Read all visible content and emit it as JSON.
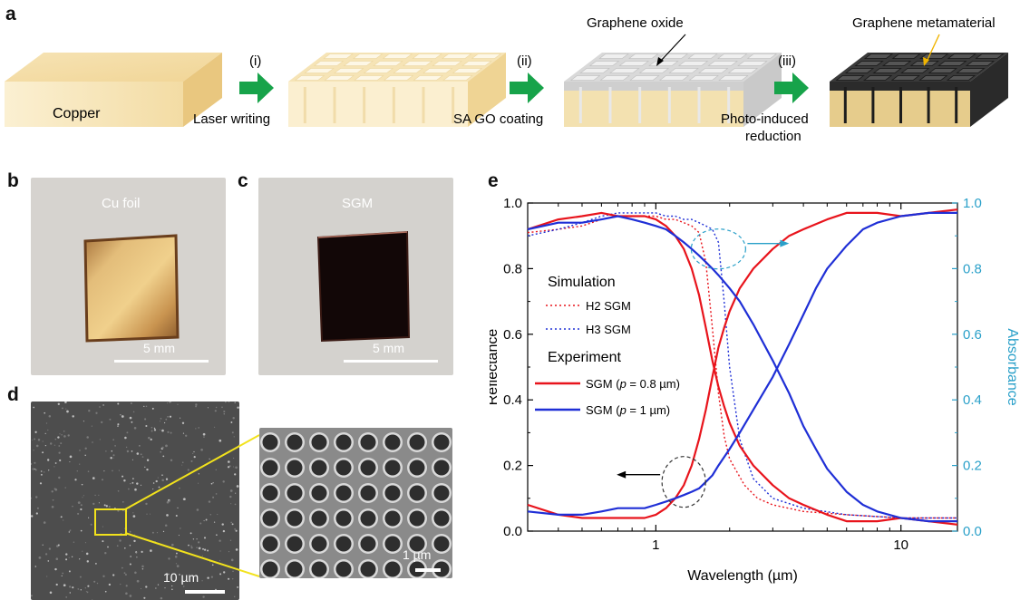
{
  "panels": {
    "a": "a",
    "b": "b",
    "c": "c",
    "d": "d",
    "e": "e"
  },
  "panel_a": {
    "block_label": "Copper",
    "steps": [
      {
        "num": "(i)",
        "label": "Laser writing"
      },
      {
        "num": "(ii)",
        "label": "SA GO coating"
      },
      {
        "num": "(iii)",
        "label_line1": "Photo-induced",
        "label_line2": "reduction"
      }
    ],
    "annotation_go": "Graphene oxide",
    "annotation_meta": "Graphene metamaterial",
    "colors": {
      "copper": "#f4dca6",
      "arrow": "#17a34a",
      "go": "#dcdcdc",
      "meta": "#2e2e2e"
    }
  },
  "panel_b": {
    "label": "Cu foil",
    "scale": "5 mm"
  },
  "panel_c": {
    "label": "SGM",
    "scale": "5 mm"
  },
  "panel_d": {
    "scale_left": "10 µm",
    "scale_right": "1 µm"
  },
  "chart_data": {
    "type": "line",
    "xlabel": "Wavelength (µm)",
    "ylabel_left": "Reflectance",
    "ylabel_right": "Absorbance",
    "xscale": "log",
    "xlim": [
      0.3,
      17
    ],
    "ylim": [
      0,
      1
    ],
    "x_ticks": [
      "1",
      "10"
    ],
    "y_ticks": [
      "0.0",
      "0.2",
      "0.4",
      "0.6",
      "0.8",
      "1.0"
    ],
    "legend": {
      "simulation_title": "Simulation",
      "experiment_title": "Experiment",
      "entries": [
        {
          "label": "H2 SGM",
          "color": "#e8141c",
          "style": "dotted"
        },
        {
          "label": "H3 SGM",
          "color": "#1f2fd6",
          "style": "dotted"
        },
        {
          "label_pre": "SGM (",
          "label_p": "p",
          "label_post": " = 0.8 µm)",
          "color": "#e8141c",
          "style": "solid"
        },
        {
          "label_pre": "SGM (",
          "label_p": "p",
          "label_post": " = 1 µm)",
          "color": "#1f2fd6",
          "style": "solid"
        }
      ]
    },
    "series": [
      {
        "name": "H2 SGM",
        "kind": "simulation",
        "color": "#e8141c",
        "absorbance": [
          [
            0.3,
            0.91
          ],
          [
            0.4,
            0.92
          ],
          [
            0.5,
            0.93
          ],
          [
            0.6,
            0.95
          ],
          [
            0.7,
            0.96
          ],
          [
            0.8,
            0.96
          ],
          [
            0.9,
            0.96
          ],
          [
            1.0,
            0.96
          ],
          [
            1.1,
            0.95
          ],
          [
            1.2,
            0.95
          ],
          [
            1.3,
            0.94
          ],
          [
            1.4,
            0.93
          ],
          [
            1.5,
            0.91
          ],
          [
            1.6,
            0.82
          ],
          [
            1.7,
            0.62
          ],
          [
            1.8,
            0.42
          ],
          [
            1.9,
            0.29
          ],
          [
            2.0,
            0.22
          ],
          [
            2.3,
            0.14
          ],
          [
            2.6,
            0.1
          ],
          [
            3,
            0.08
          ],
          [
            4,
            0.06
          ],
          [
            6,
            0.05
          ],
          [
            10,
            0.04
          ],
          [
            17,
            0.04
          ]
        ]
      },
      {
        "name": "H3 SGM",
        "kind": "simulation",
        "color": "#1f2fd6",
        "absorbance": [
          [
            0.3,
            0.9
          ],
          [
            0.4,
            0.92
          ],
          [
            0.5,
            0.94
          ],
          [
            0.6,
            0.96
          ],
          [
            0.7,
            0.97
          ],
          [
            0.8,
            0.97
          ],
          [
            0.9,
            0.97
          ],
          [
            1.0,
            0.97
          ],
          [
            1.1,
            0.96
          ],
          [
            1.2,
            0.96
          ],
          [
            1.3,
            0.95
          ],
          [
            1.4,
            0.95
          ],
          [
            1.5,
            0.94
          ],
          [
            1.6,
            0.93
          ],
          [
            1.7,
            0.92
          ],
          [
            1.8,
            0.88
          ],
          [
            1.9,
            0.7
          ],
          [
            2.0,
            0.5
          ],
          [
            2.2,
            0.28
          ],
          [
            2.5,
            0.16
          ],
          [
            3,
            0.1
          ],
          [
            4,
            0.07
          ],
          [
            6,
            0.05
          ],
          [
            10,
            0.04
          ],
          [
            17,
            0.04
          ]
        ]
      },
      {
        "name": "SGM (p = 0.8 µm) reflectance",
        "kind": "experiment",
        "color": "#e8141c",
        "reflectance": [
          [
            0.3,
            0.08
          ],
          [
            0.4,
            0.05
          ],
          [
            0.5,
            0.04
          ],
          [
            0.6,
            0.04
          ],
          [
            0.7,
            0.04
          ],
          [
            0.8,
            0.04
          ],
          [
            0.9,
            0.04
          ],
          [
            1.0,
            0.05
          ],
          [
            1.1,
            0.07
          ],
          [
            1.2,
            0.1
          ],
          [
            1.3,
            0.14
          ],
          [
            1.4,
            0.2
          ],
          [
            1.5,
            0.28
          ],
          [
            1.6,
            0.37
          ],
          [
            1.7,
            0.47
          ],
          [
            1.8,
            0.56
          ],
          [
            1.9,
            0.62
          ],
          [
            2.0,
            0.67
          ],
          [
            2.2,
            0.74
          ],
          [
            2.5,
            0.8
          ],
          [
            3,
            0.86
          ],
          [
            3.5,
            0.9
          ],
          [
            4,
            0.92
          ],
          [
            5,
            0.95
          ],
          [
            6,
            0.97
          ],
          [
            8,
            0.97
          ],
          [
            10,
            0.96
          ],
          [
            13,
            0.97
          ],
          [
            17,
            0.98
          ]
        ]
      },
      {
        "name": "SGM (p = 0.8 µm) absorbance",
        "kind": "experiment",
        "color": "#e8141c",
        "absorbance": [
          [
            0.3,
            0.92
          ],
          [
            0.4,
            0.95
          ],
          [
            0.5,
            0.96
          ],
          [
            0.6,
            0.97
          ],
          [
            0.7,
            0.96
          ],
          [
            0.8,
            0.96
          ],
          [
            0.9,
            0.96
          ],
          [
            1.0,
            0.95
          ],
          [
            1.1,
            0.93
          ],
          [
            1.2,
            0.9
          ],
          [
            1.3,
            0.86
          ],
          [
            1.4,
            0.8
          ],
          [
            1.5,
            0.72
          ],
          [
            1.6,
            0.62
          ],
          [
            1.7,
            0.52
          ],
          [
            1.8,
            0.44
          ],
          [
            1.9,
            0.38
          ],
          [
            2.0,
            0.33
          ],
          [
            2.2,
            0.26
          ],
          [
            2.5,
            0.2
          ],
          [
            3,
            0.14
          ],
          [
            3.5,
            0.1
          ],
          [
            4,
            0.08
          ],
          [
            5,
            0.05
          ],
          [
            6,
            0.03
          ],
          [
            8,
            0.03
          ],
          [
            10,
            0.04
          ],
          [
            13,
            0.03
          ],
          [
            17,
            0.02
          ]
        ]
      },
      {
        "name": "SGM (p = 1 µm) reflectance",
        "kind": "experiment",
        "color": "#1f2fd6",
        "reflectance": [
          [
            0.3,
            0.06
          ],
          [
            0.4,
            0.05
          ],
          [
            0.5,
            0.05
          ],
          [
            0.6,
            0.06
          ],
          [
            0.7,
            0.07
          ],
          [
            0.8,
            0.07
          ],
          [
            0.9,
            0.07
          ],
          [
            1.0,
            0.08
          ],
          [
            1.1,
            0.09
          ],
          [
            1.2,
            0.1
          ],
          [
            1.3,
            0.11
          ],
          [
            1.4,
            0.12
          ],
          [
            1.5,
            0.13
          ],
          [
            1.6,
            0.15
          ],
          [
            1.7,
            0.17
          ],
          [
            1.8,
            0.2
          ],
          [
            2.0,
            0.25
          ],
          [
            2.2,
            0.3
          ],
          [
            2.5,
            0.37
          ],
          [
            3,
            0.47
          ],
          [
            3.5,
            0.57
          ],
          [
            4,
            0.66
          ],
          [
            4.5,
            0.74
          ],
          [
            5,
            0.8
          ],
          [
            6,
            0.87
          ],
          [
            7,
            0.92
          ],
          [
            8,
            0.94
          ],
          [
            10,
            0.96
          ],
          [
            13,
            0.97
          ],
          [
            17,
            0.97
          ]
        ]
      },
      {
        "name": "SGM (p = 1 µm) absorbance",
        "kind": "experiment",
        "color": "#1f2fd6",
        "absorbance": [
          [
            0.3,
            0.92
          ],
          [
            0.4,
            0.94
          ],
          [
            0.5,
            0.94
          ],
          [
            0.6,
            0.95
          ],
          [
            0.7,
            0.96
          ],
          [
            0.8,
            0.95
          ],
          [
            0.9,
            0.94
          ],
          [
            1.0,
            0.93
          ],
          [
            1.1,
            0.92
          ],
          [
            1.2,
            0.9
          ],
          [
            1.3,
            0.88
          ],
          [
            1.4,
            0.86
          ],
          [
            1.5,
            0.84
          ],
          [
            1.6,
            0.82
          ],
          [
            1.7,
            0.8
          ],
          [
            1.8,
            0.78
          ],
          [
            2.0,
            0.74
          ],
          [
            2.2,
            0.7
          ],
          [
            2.5,
            0.63
          ],
          [
            3,
            0.52
          ],
          [
            3.5,
            0.42
          ],
          [
            4,
            0.32
          ],
          [
            4.5,
            0.25
          ],
          [
            5,
            0.19
          ],
          [
            6,
            0.12
          ],
          [
            7,
            0.08
          ],
          [
            8,
            0.06
          ],
          [
            10,
            0.04
          ],
          [
            13,
            0.03
          ],
          [
            17,
            0.03
          ]
        ]
      }
    ],
    "colors": {
      "right_axis": "#2aa0c9",
      "circle_left": "#333333",
      "circle_right": "#2aa0c9"
    }
  }
}
